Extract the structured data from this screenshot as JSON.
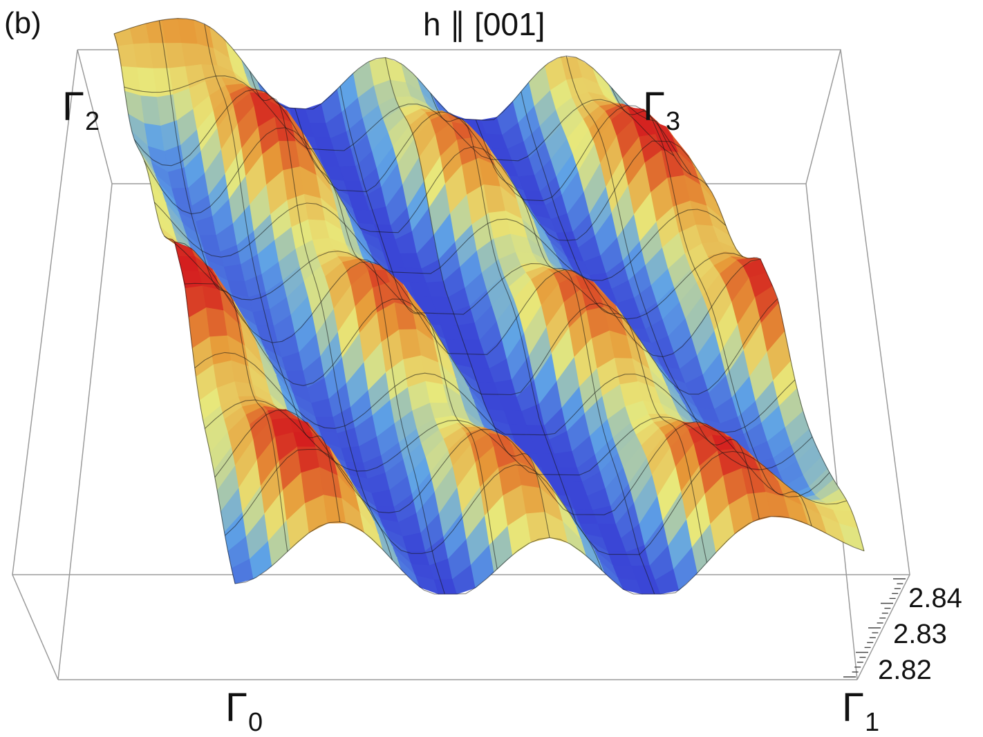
{
  "figure": {
    "panel_label": "(b)",
    "title": "h ∥ [001]"
  },
  "chart_data": {
    "type": "surface3d",
    "title": "h ∥ [001]",
    "corner_labels": [
      {
        "symbol": "Γ",
        "sub": "0",
        "corner": "front-left"
      },
      {
        "symbol": "Γ",
        "sub": "1",
        "corner": "front-right"
      },
      {
        "symbol": "Γ",
        "sub": "2",
        "corner": "back-left"
      },
      {
        "symbol": "Γ",
        "sub": "3",
        "corner": "back-right"
      }
    ],
    "z_ticks": [
      "2.84",
      "2.83",
      "2.82"
    ],
    "z_range": [
      2.815,
      2.845
    ],
    "grid": true,
    "colormap": [
      "#3a46d6",
      "#5fa3e6",
      "#e8e87a",
      "#e79a38",
      "#d41f1f"
    ],
    "surface": {
      "description": "periodic energy landscape with maxima near Γ2 and Γ1 and rows of humps between them",
      "peaks_per_row": 3,
      "rows": 3
    }
  }
}
